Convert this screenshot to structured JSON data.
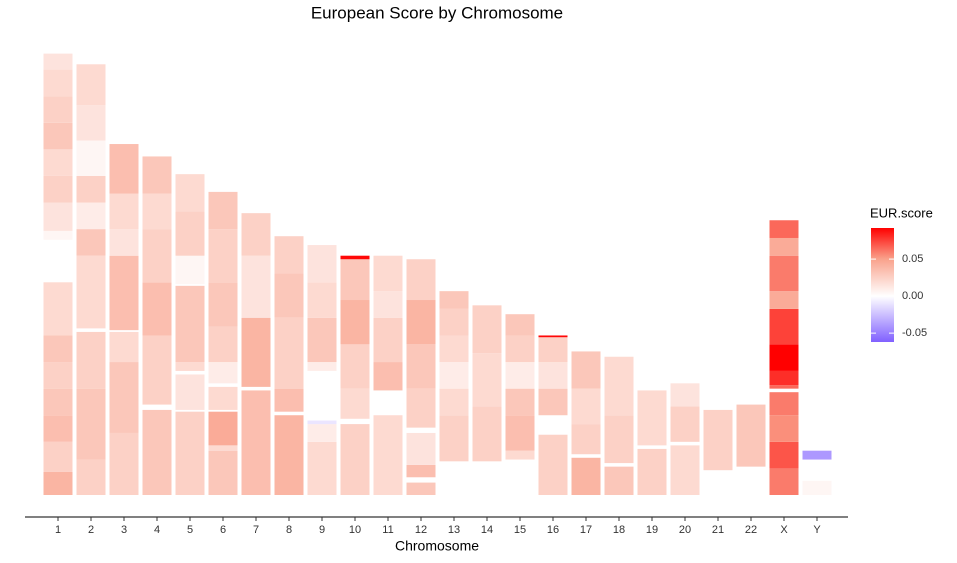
{
  "chart_data": {
    "type": "ideogram-heatmap",
    "title": "European Score by Chromosome",
    "x_label": "Chromosome",
    "ylim": [
      0,
      255
    ],
    "chromosomes": [
      {
        "name": "1",
        "segments": [
          [
            0,
            13,
            0.04
          ],
          [
            13,
            30,
            0.025
          ],
          [
            30,
            45,
            0.035
          ],
          [
            45,
            60,
            0.03
          ],
          [
            60,
            75,
            0.025
          ],
          [
            75,
            90,
            0.03
          ],
          [
            90,
            120,
            0.02
          ],
          [
            144,
            149,
            0.005
          ],
          [
            149,
            165,
            0.015
          ],
          [
            165,
            180,
            0.025
          ],
          [
            180,
            195,
            0.02
          ],
          [
            195,
            210,
            0.03
          ],
          [
            210,
            225,
            0.025
          ],
          [
            225,
            240,
            0.02
          ],
          [
            240,
            249,
            0.015
          ]
        ]
      },
      {
        "name": "2",
        "segments": [
          [
            0,
            20,
            0.025
          ],
          [
            20,
            60,
            0.03
          ],
          [
            60,
            92,
            0.025
          ],
          [
            94,
            135,
            0.02
          ],
          [
            135,
            150,
            0.03
          ],
          [
            150,
            165,
            0.01
          ],
          [
            165,
            180,
            0.025
          ],
          [
            180,
            200,
            0.005
          ],
          [
            200,
            220,
            0.015
          ],
          [
            220,
            243,
            0.02
          ]
        ]
      },
      {
        "name": "3",
        "segments": [
          [
            0,
            35,
            0.025
          ],
          [
            35,
            75,
            0.03
          ],
          [
            75,
            92,
            0.02
          ],
          [
            93,
            135,
            0.035
          ],
          [
            135,
            150,
            0.015
          ],
          [
            150,
            170,
            0.02
          ],
          [
            170,
            198,
            0.035
          ]
        ]
      },
      {
        "name": "4",
        "segments": [
          [
            0,
            48,
            0.03
          ],
          [
            51,
            90,
            0.025
          ],
          [
            90,
            120,
            0.035
          ],
          [
            120,
            150,
            0.025
          ],
          [
            150,
            170,
            0.02
          ],
          [
            170,
            191,
            0.03
          ]
        ]
      },
      {
        "name": "5",
        "segments": [
          [
            0,
            47,
            0.025
          ],
          [
            48,
            68,
            0.015
          ],
          [
            70,
            75,
            0.02
          ],
          [
            75,
            118,
            0.03
          ],
          [
            119,
            135,
            0.005
          ],
          [
            135,
            160,
            0.025
          ],
          [
            160,
            181,
            0.02
          ]
        ]
      },
      {
        "name": "6",
        "segments": [
          [
            0,
            25,
            0.03
          ],
          [
            25,
            28,
            0.02
          ],
          [
            28,
            47,
            0.045
          ],
          [
            48,
            61,
            0.02
          ],
          [
            63,
            75,
            0.01
          ],
          [
            75,
            95,
            0.025
          ],
          [
            95,
            120,
            0.03
          ],
          [
            120,
            150,
            0.025
          ],
          [
            150,
            171,
            0.03
          ]
        ]
      },
      {
        "name": "7",
        "segments": [
          [
            0,
            59,
            0.035
          ],
          [
            61,
            100,
            0.04
          ],
          [
            100,
            135,
            0.015
          ],
          [
            135,
            159,
            0.025
          ]
        ]
      },
      {
        "name": "8",
        "segments": [
          [
            0,
            45,
            0.04
          ],
          [
            47,
            60,
            0.035
          ],
          [
            60,
            100,
            0.025
          ],
          [
            100,
            125,
            0.03
          ],
          [
            125,
            146,
            0.025
          ]
        ]
      },
      {
        "name": "9",
        "segments": [
          [
            0,
            30,
            0.02
          ],
          [
            30,
            40,
            0.01
          ],
          [
            40,
            42,
            -0.01
          ],
          [
            70,
            75,
            0.01
          ],
          [
            75,
            100,
            0.03
          ],
          [
            100,
            120,
            0.02
          ],
          [
            120,
            141,
            0.015
          ]
        ]
      },
      {
        "name": "10",
        "segments": [
          [
            0,
            40,
            0.025
          ],
          [
            43,
            60,
            0.02
          ],
          [
            60,
            85,
            0.025
          ],
          [
            85,
            110,
            0.04
          ],
          [
            110,
            133,
            0.03
          ],
          [
            133,
            135,
            0.09
          ]
        ]
      },
      {
        "name": "11",
        "segments": [
          [
            0,
            45,
            0.02
          ],
          [
            59,
            75,
            0.035
          ],
          [
            75,
            100,
            0.025
          ],
          [
            100,
            115,
            0.015
          ],
          [
            115,
            135,
            0.02
          ]
        ]
      },
      {
        "name": "12",
        "segments": [
          [
            0,
            7,
            0.03
          ],
          [
            10,
            17,
            0.035
          ],
          [
            17,
            35,
            0.015
          ],
          [
            38,
            60,
            0.025
          ],
          [
            60,
            85,
            0.03
          ],
          [
            85,
            110,
            0.04
          ],
          [
            110,
            133,
            0.025
          ]
        ]
      },
      {
        "name": "13",
        "segments": [
          [
            19,
            45,
            0.025
          ],
          [
            45,
            60,
            0.02
          ],
          [
            60,
            75,
            0.01
          ],
          [
            75,
            90,
            0.02
          ],
          [
            90,
            105,
            0.025
          ],
          [
            105,
            115,
            0.03
          ]
        ]
      },
      {
        "name": "14",
        "segments": [
          [
            19,
            50,
            0.025
          ],
          [
            50,
            80,
            0.02
          ],
          [
            80,
            107,
            0.025
          ]
        ]
      },
      {
        "name": "15",
        "segments": [
          [
            20,
            25,
            0.02
          ],
          [
            25,
            45,
            0.035
          ],
          [
            45,
            60,
            0.03
          ],
          [
            60,
            75,
            0.01
          ],
          [
            75,
            90,
            0.025
          ],
          [
            90,
            102,
            0.03
          ]
        ]
      },
      {
        "name": "16",
        "segments": [
          [
            0,
            34,
            0.025
          ],
          [
            45,
            60,
            0.03
          ],
          [
            60,
            75,
            0.015
          ],
          [
            75,
            89,
            0.025
          ],
          [
            89,
            90,
            0.09
          ]
        ]
      },
      {
        "name": "17",
        "segments": [
          [
            0,
            21,
            0.04
          ],
          [
            23,
            40,
            0.025
          ],
          [
            40,
            60,
            0.02
          ],
          [
            60,
            81,
            0.03
          ]
        ]
      },
      {
        "name": "18",
        "segments": [
          [
            0,
            16,
            0.03
          ],
          [
            18,
            45,
            0.025
          ],
          [
            45,
            78,
            0.02
          ]
        ]
      },
      {
        "name": "19",
        "segments": [
          [
            0,
            26,
            0.025
          ],
          [
            28,
            59,
            0.02
          ]
        ]
      },
      {
        "name": "20",
        "segments": [
          [
            0,
            28,
            0.02
          ],
          [
            30,
            50,
            0.025
          ],
          [
            50,
            63,
            0.015
          ]
        ]
      },
      {
        "name": "21",
        "segments": [
          [
            14,
            48,
            0.025
          ]
        ]
      },
      {
        "name": "22",
        "segments": [
          [
            16,
            51,
            0.03
          ]
        ]
      },
      {
        "name": "X",
        "segments": [
          [
            0,
            15,
            0.06
          ],
          [
            15,
            30,
            0.07
          ],
          [
            30,
            45,
            0.055
          ],
          [
            45,
            58,
            0.06
          ],
          [
            60,
            62,
            0.065
          ],
          [
            62,
            70,
            0.08
          ],
          [
            70,
            85,
            0.095
          ],
          [
            85,
            105,
            0.075
          ],
          [
            105,
            115,
            0.045
          ],
          [
            115,
            135,
            0.06
          ],
          [
            135,
            145,
            0.045
          ],
          [
            145,
            155,
            0.065
          ]
        ]
      },
      {
        "name": "Y",
        "segments": [
          [
            0,
            8,
            0.005
          ],
          [
            20,
            25,
            -0.04
          ]
        ]
      }
    ],
    "colorbar": {
      "title": "EUR.score",
      "stops": [
        {
          "value": -0.062,
          "color": "#8060ff"
        },
        {
          "value": 0,
          "color": "#ffffff"
        },
        {
          "value": 0.05,
          "color": "#f9a28c"
        },
        {
          "value": 0.092,
          "color": "#ff0000"
        }
      ],
      "ticks": [
        0.05,
        {
          "value": 0,
          "label": "0.00"
        },
        -0.05
      ]
    }
  }
}
